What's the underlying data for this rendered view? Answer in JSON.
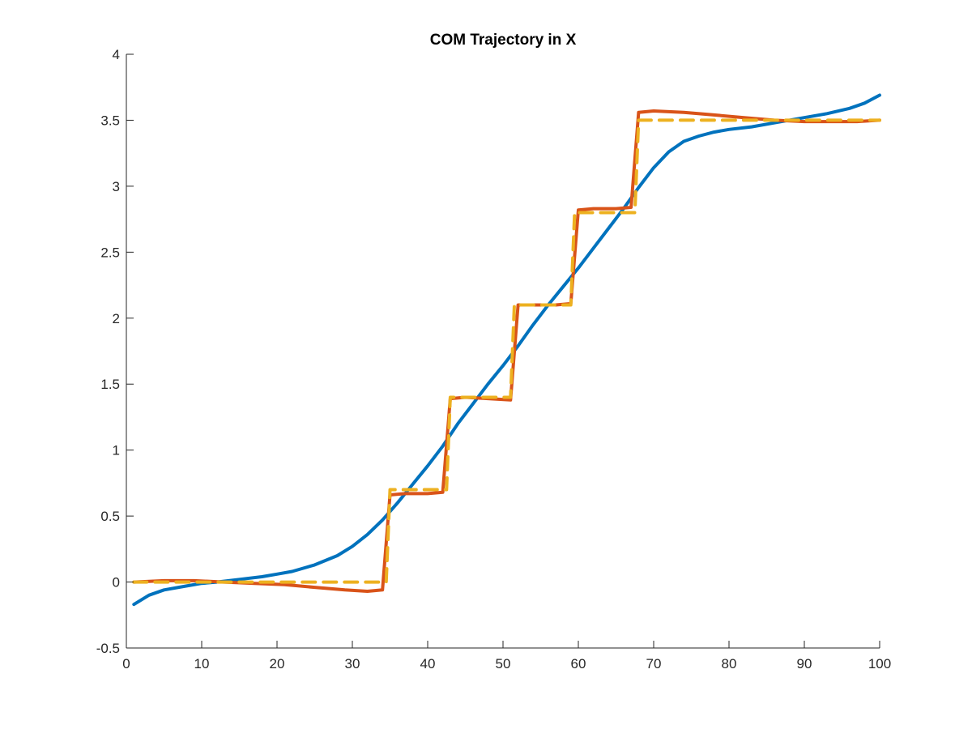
{
  "chart_data": {
    "type": "line",
    "title": "COM Trajectory in X",
    "xlabel": "",
    "ylabel": "",
    "xlim": [
      0,
      100
    ],
    "ylim": [
      -0.5,
      4
    ],
    "xticks": [
      0,
      10,
      20,
      30,
      40,
      50,
      60,
      70,
      80,
      90,
      100
    ],
    "xtick_labels": [
      "0",
      "10",
      "20",
      "30",
      "40",
      "50",
      "60",
      "70",
      "80",
      "90",
      "100"
    ],
    "yticks": [
      -0.5,
      0,
      0.5,
      1,
      1.5,
      2,
      2.5,
      3,
      3.5,
      4
    ],
    "ytick_labels": [
      "-0.5",
      "0",
      "0.5",
      "1",
      "1.5",
      "2",
      "2.5",
      "3",
      "3.5",
      "4"
    ],
    "grid": false,
    "legend": "none",
    "series": [
      {
        "color": "#0072BD",
        "style": "solid",
        "x": [
          1,
          3,
          5,
          8,
          10,
          12,
          15,
          18,
          20,
          22,
          25,
          28,
          30,
          32,
          34,
          36,
          38,
          40,
          42,
          44,
          46,
          48,
          50,
          52,
          54,
          56,
          58,
          60,
          62,
          64,
          66,
          68,
          70,
          72,
          74,
          76,
          78,
          80,
          83,
          86,
          90,
          93,
          96,
          98,
          100
        ],
        "y": [
          -0.17,
          -0.1,
          -0.06,
          -0.03,
          -0.01,
          0.0,
          0.02,
          0.04,
          0.06,
          0.08,
          0.13,
          0.2,
          0.27,
          0.36,
          0.47,
          0.6,
          0.74,
          0.88,
          1.03,
          1.2,
          1.35,
          1.5,
          1.64,
          1.79,
          1.95,
          2.1,
          2.24,
          2.38,
          2.53,
          2.68,
          2.83,
          2.99,
          3.14,
          3.26,
          3.34,
          3.38,
          3.41,
          3.43,
          3.45,
          3.48,
          3.52,
          3.55,
          3.59,
          3.63,
          3.69
        ]
      },
      {
        "color": "#D95319",
        "style": "solid",
        "x": [
          1,
          5,
          9,
          13,
          17,
          21,
          25,
          29,
          32,
          34,
          35,
          37,
          40,
          42,
          43,
          45,
          48,
          51,
          52,
          54,
          57,
          59,
          60,
          62,
          65,
          67,
          68,
          70,
          74,
          78,
          82,
          86,
          90,
          94,
          97,
          100
        ],
        "y": [
          0.0,
          0.01,
          0.01,
          0.0,
          -0.01,
          -0.02,
          -0.04,
          -0.06,
          -0.07,
          -0.06,
          0.66,
          0.67,
          0.67,
          0.68,
          1.39,
          1.4,
          1.39,
          1.38,
          2.1,
          2.1,
          2.1,
          2.11,
          2.82,
          2.83,
          2.83,
          2.84,
          3.56,
          3.57,
          3.56,
          3.54,
          3.52,
          3.5,
          3.49,
          3.49,
          3.49,
          3.5
        ]
      },
      {
        "color": "#EDB120",
        "style": "dashed",
        "x": [
          1,
          34.5,
          35,
          42.5,
          43,
          51,
          51.5,
          59,
          59.5,
          67.5,
          68,
          100
        ],
        "y": [
          0.0,
          0.0,
          0.7,
          0.7,
          1.4,
          1.4,
          2.1,
          2.1,
          2.8,
          2.8,
          3.5,
          3.5
        ]
      }
    ]
  }
}
